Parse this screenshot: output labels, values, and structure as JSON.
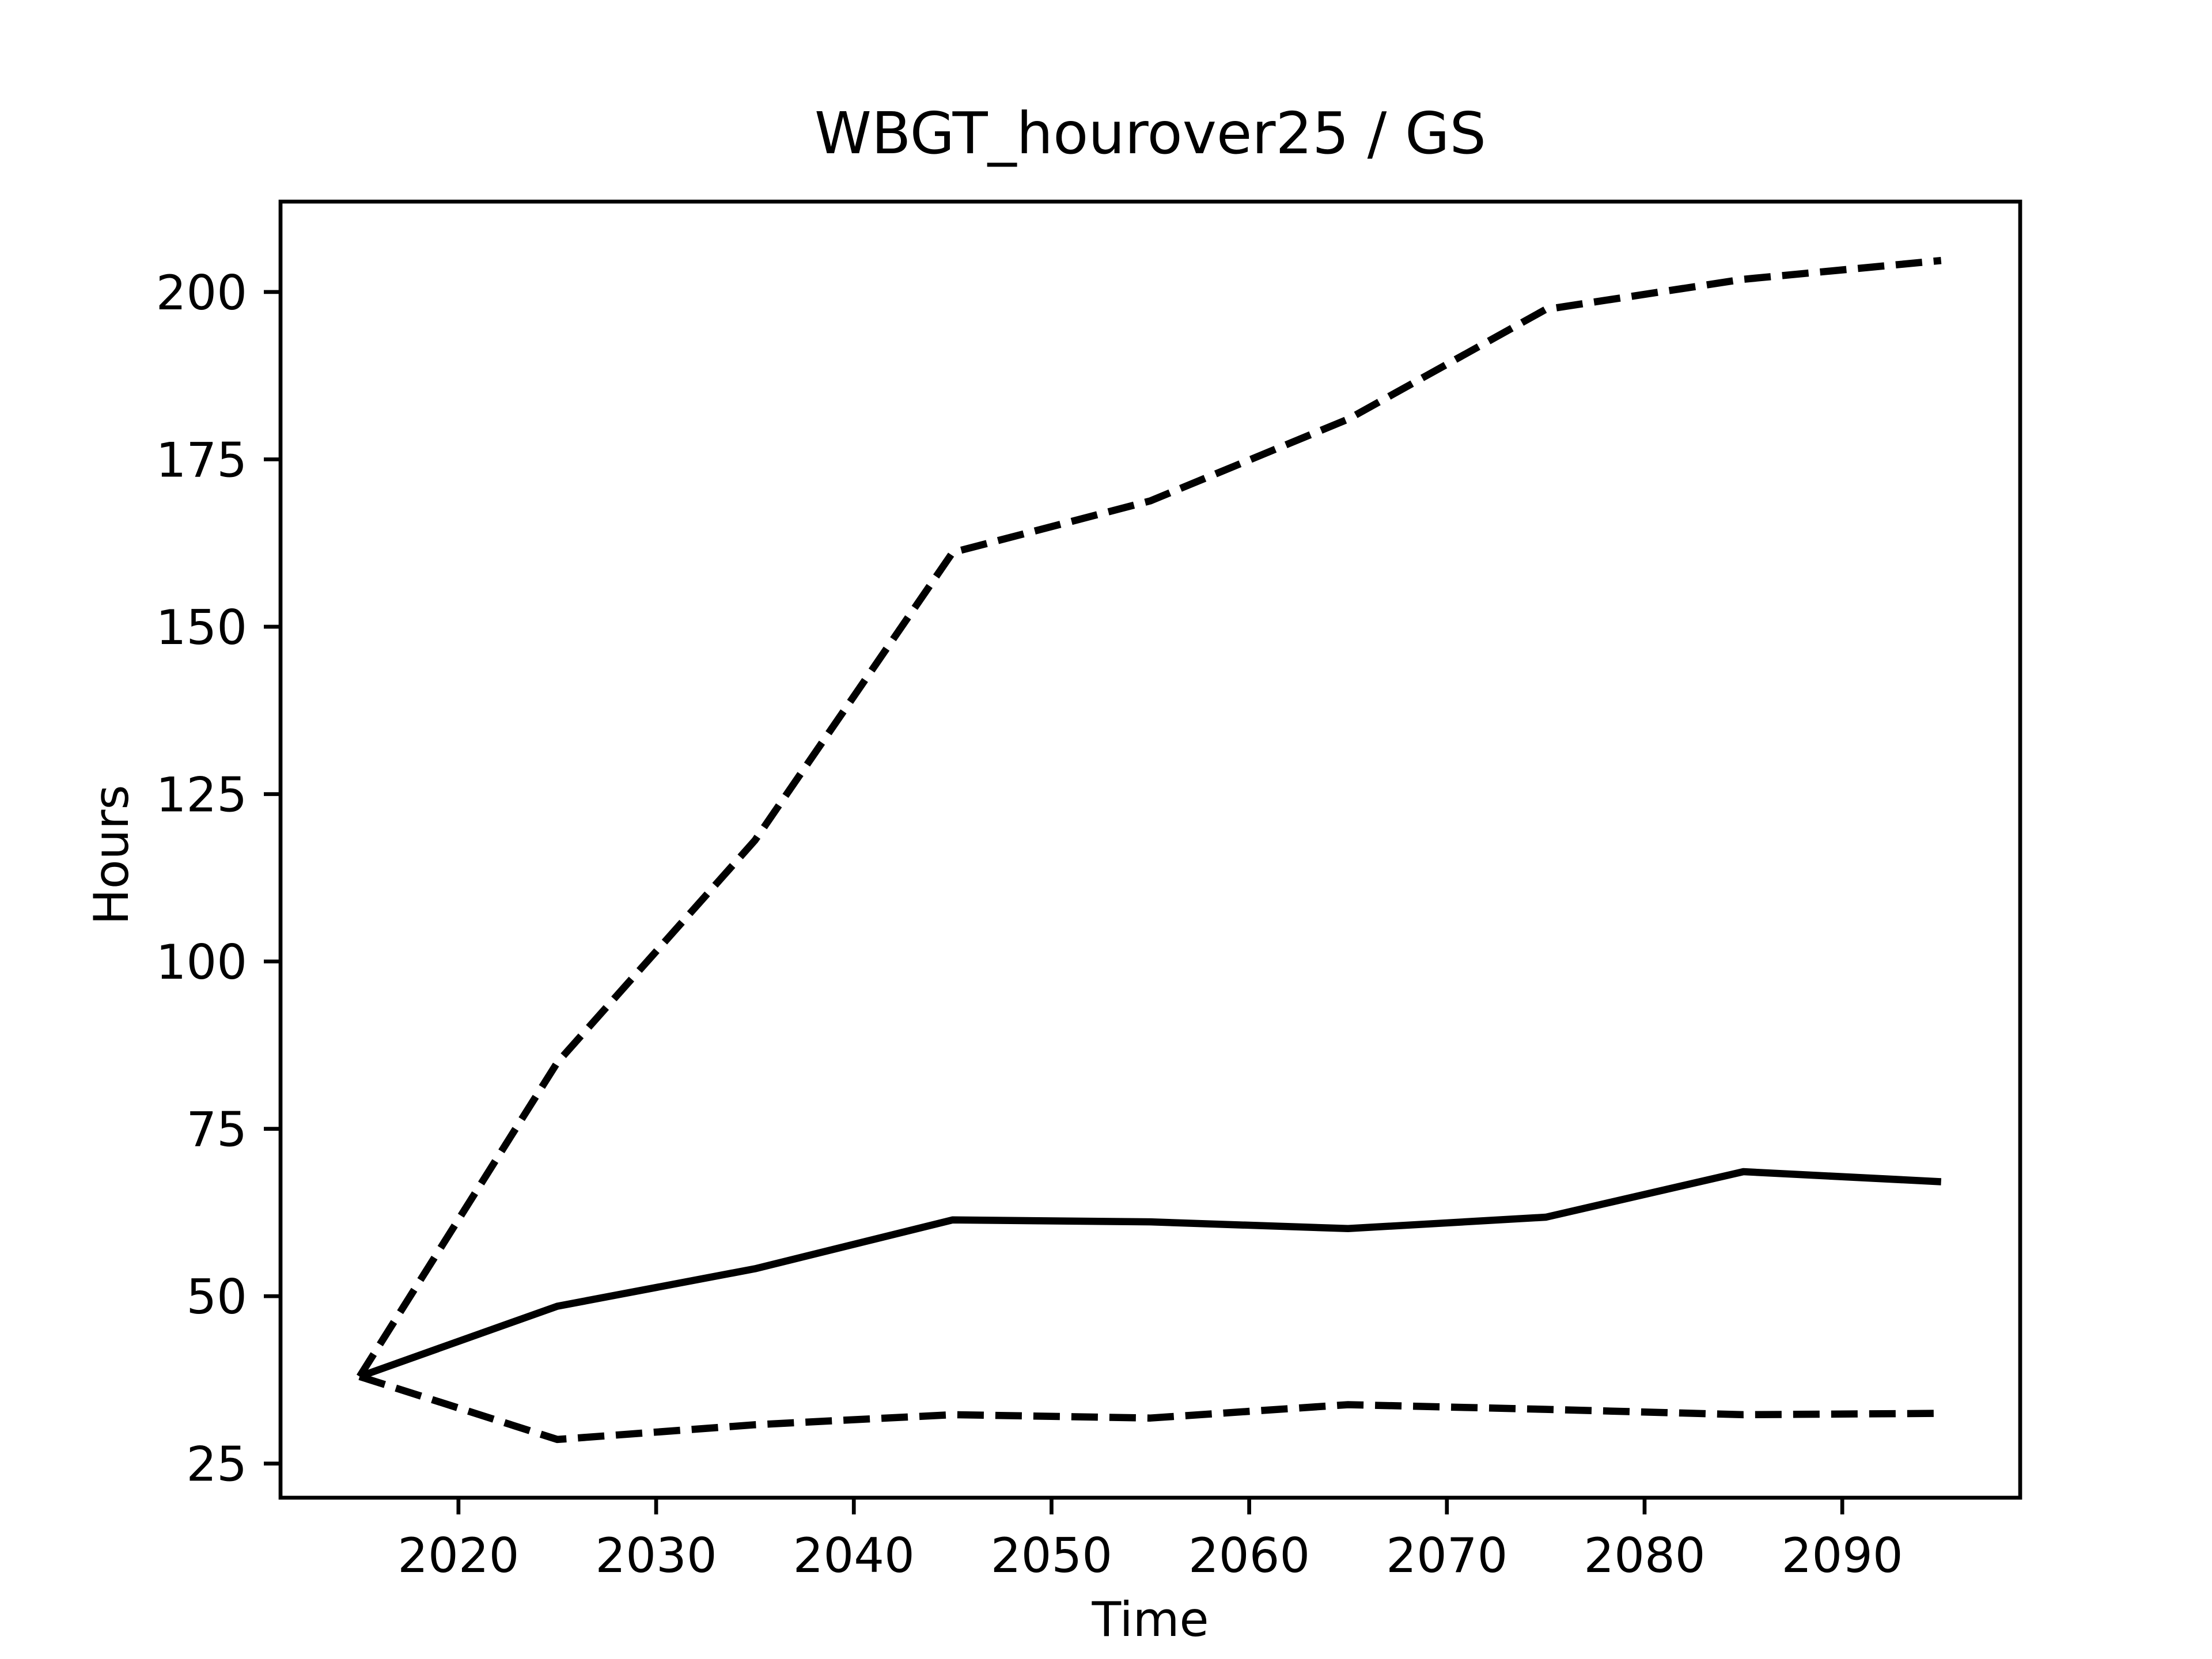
{
  "chart_data": {
    "type": "line",
    "title": "WBGT_hourover25 / GS",
    "xlabel": "Time",
    "ylabel": "Hours",
    "x": [
      2015,
      2025,
      2035,
      2045,
      2055,
      2065,
      2075,
      2085,
      2095
    ],
    "series": [
      {
        "color": "#000000",
        "style": "solid",
        "values": [
          38,
          48.5,
          54.1,
          61.4,
          61.1,
          60.1,
          61.8,
          68.6,
          67.1
        ]
      },
      {
        "color": "#000000",
        "style": "dashed",
        "values": [
          38,
          84.9,
          118.1,
          161.1,
          168.8,
          181.0,
          197.4,
          201.9,
          204.7
        ]
      },
      {
        "color": "#000000",
        "style": "dashed",
        "values": [
          38,
          28.6,
          30.8,
          32.3,
          31.8,
          33.8,
          33.1,
          32.3,
          32.5
        ]
      }
    ],
    "xlim": [
      2011,
      2099
    ],
    "xticks": [
      2020,
      2030,
      2040,
      2050,
      2060,
      2070,
      2080,
      2090
    ],
    "ylim": [
      19.9,
      213.5
    ],
    "yticks": [
      25,
      50,
      75,
      100,
      125,
      150,
      175,
      200
    ],
    "grid": false
  }
}
